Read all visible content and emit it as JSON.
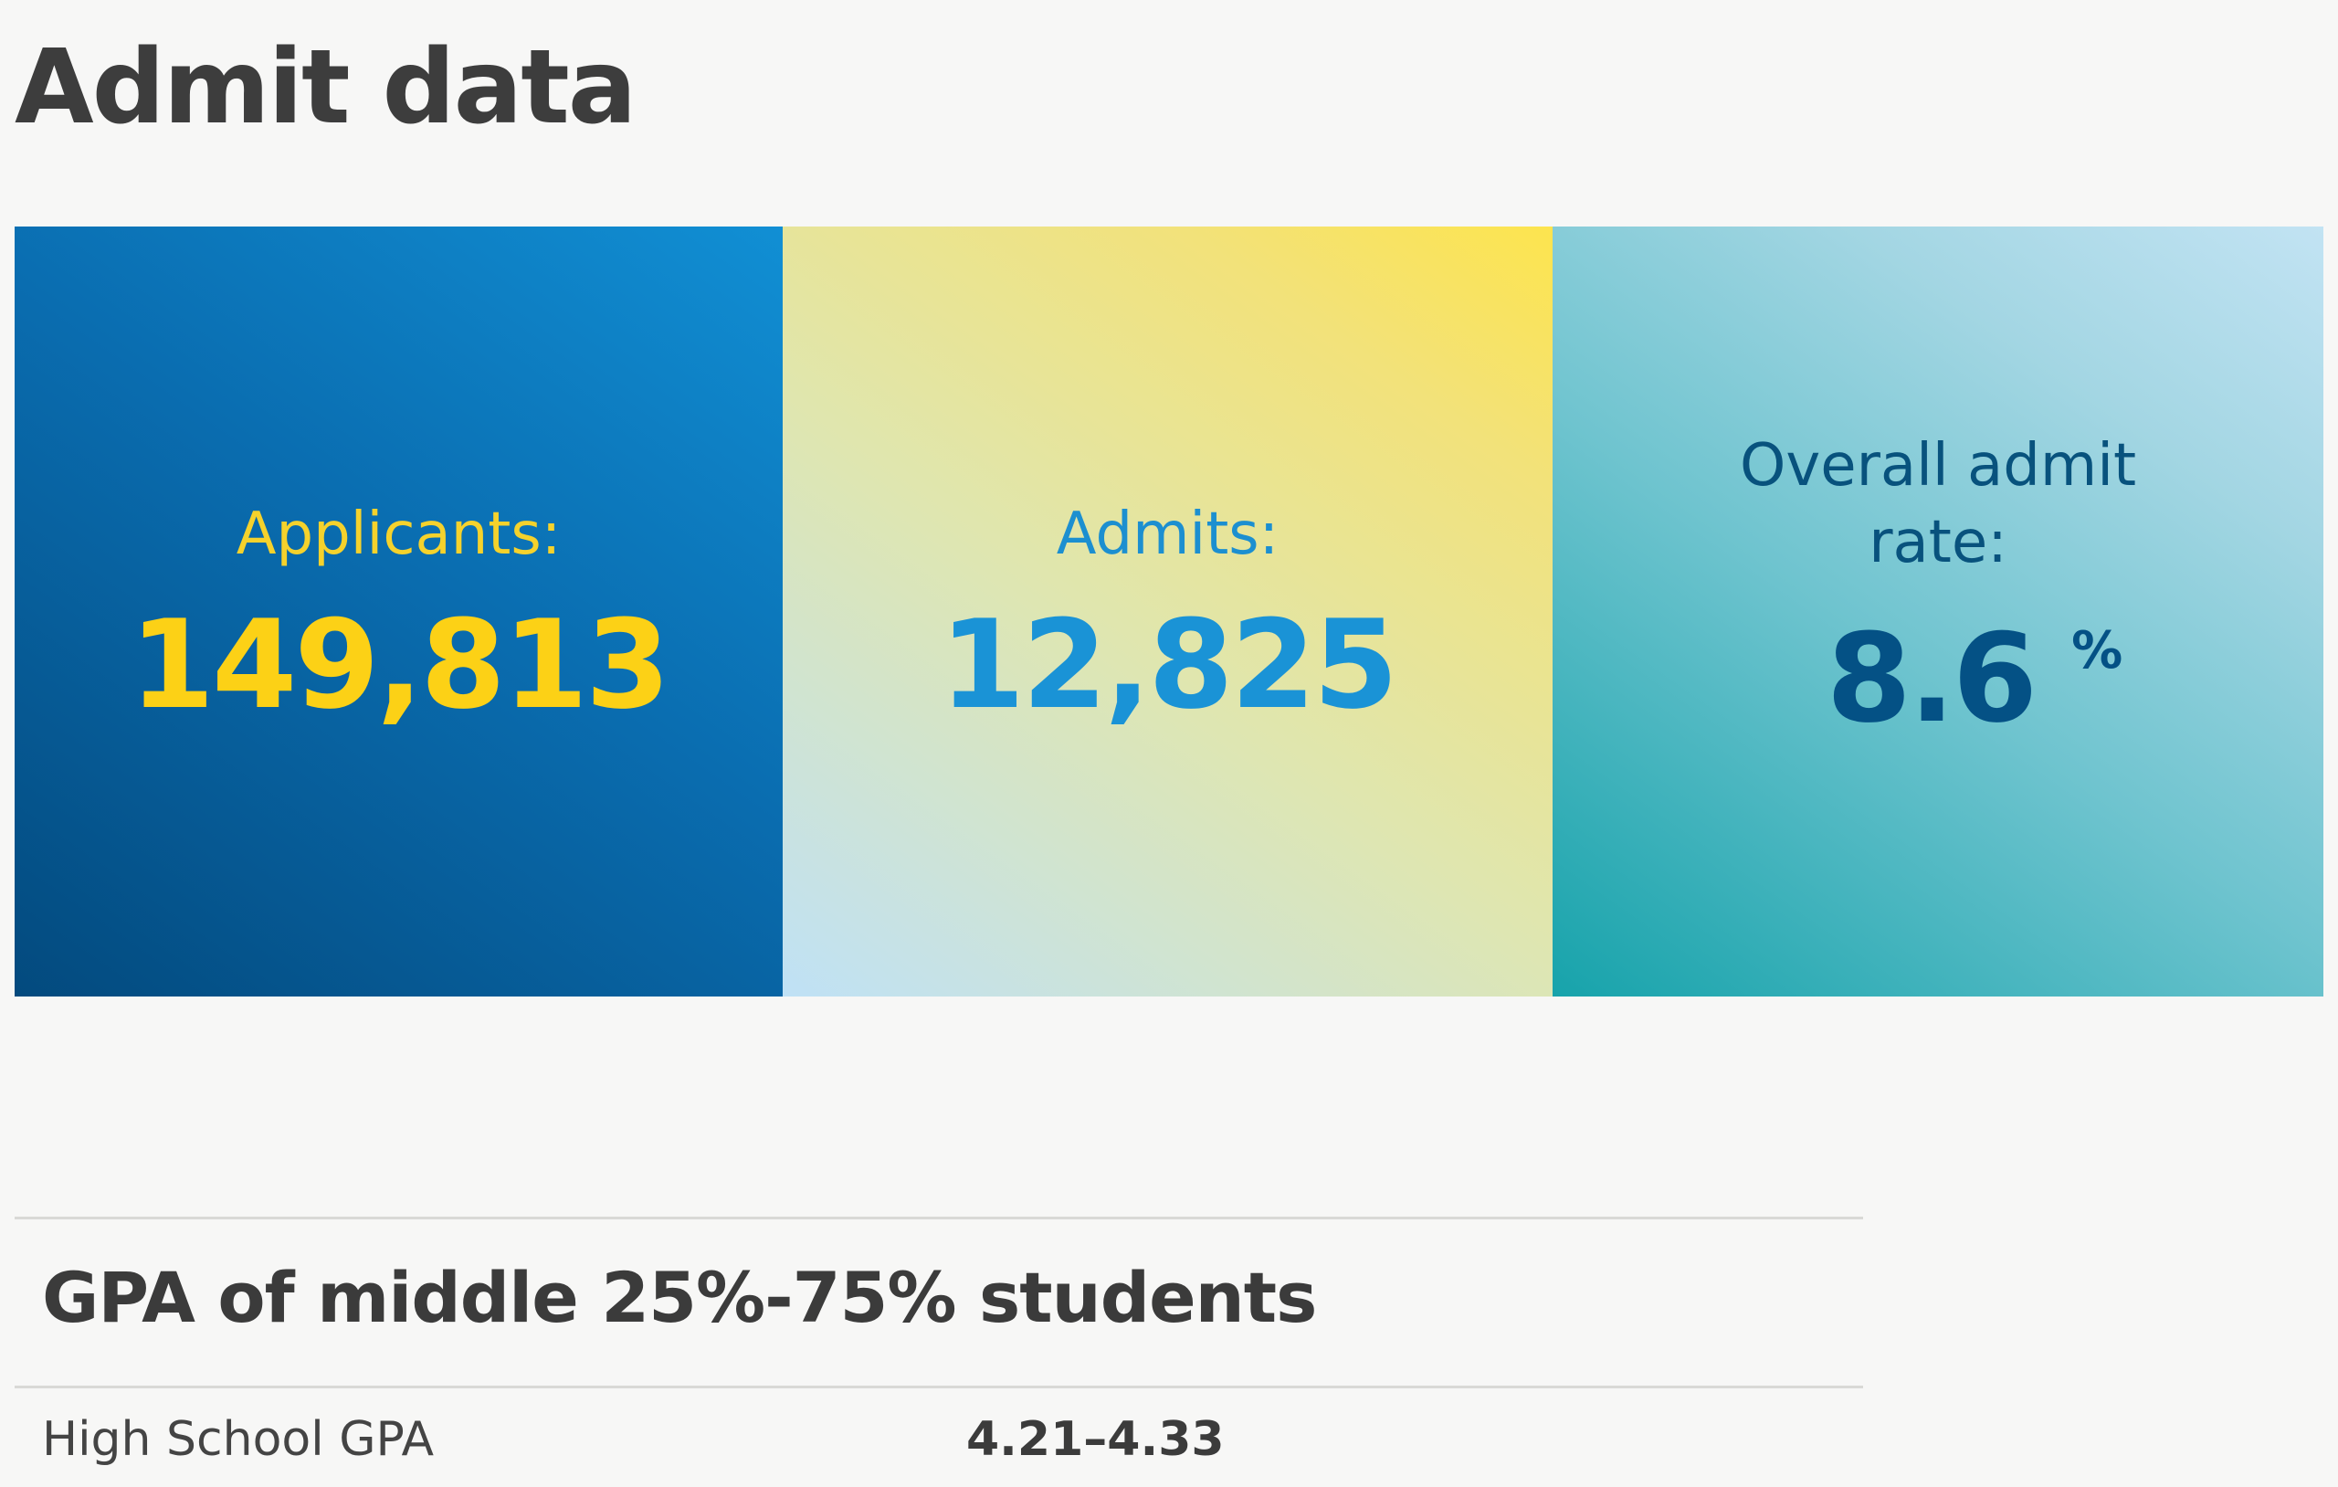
{
  "page": {
    "title": "Admit data"
  },
  "stats": {
    "applicants": {
      "label": "Applicants:",
      "value": "149,813"
    },
    "admits": {
      "label": "Admits:",
      "value": "12,825"
    },
    "admit_rate": {
      "label": "Overall admit rate:",
      "value": "8.6",
      "unit": "%"
    }
  },
  "gpa": {
    "title": "GPA of middle 25%-75% students",
    "rows": [
      {
        "label": "High School GPA",
        "value": "4.21–4.33"
      }
    ]
  },
  "colors": {
    "applicants_tile": "#0a6db0",
    "applicants_text": "#fcd116",
    "admits_tile": "#f2e27a",
    "admits_text": "#1a93d6",
    "rate_tile": "#6fc4cf",
    "rate_text": "#045185"
  }
}
